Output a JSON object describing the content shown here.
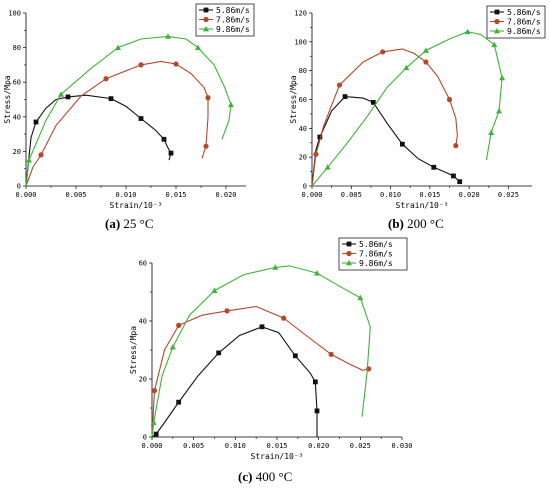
{
  "chart_data": [
    {
      "type": "line",
      "caption_letter": "(a)",
      "caption_text": " 25 °C",
      "xlabel": "Strain/10⁻³",
      "ylabel": "Stress/Mpa",
      "xlim": [
        0,
        0.022
      ],
      "ylim": [
        0,
        100
      ],
      "xticks": [
        0.0,
        0.005,
        0.01,
        0.015,
        0.02
      ],
      "xtick_labels": [
        "0.000",
        "0.005",
        "0.010",
        "0.015",
        "0.020"
      ],
      "yticks": [
        0,
        20,
        40,
        60,
        80,
        100
      ],
      "ytick_labels": [
        "0",
        "20",
        "40",
        "60",
        "80",
        "100"
      ],
      "legend_position": "top-right",
      "series": [
        {
          "name": "5.86m/s",
          "color": "#111111",
          "marker": "square",
          "x": [
            0,
            0.0005,
            0.001,
            0.002,
            0.003,
            0.0042,
            0.006,
            0.0085,
            0.01,
            0.0115,
            0.013,
            0.0138,
            0.0142,
            0.0145,
            0.0143
          ],
          "y": [
            0,
            28,
            37,
            45,
            50,
            51.5,
            52.5,
            50.5,
            46,
            39,
            32,
            27,
            22,
            19,
            15
          ],
          "marker_idx": [
            2,
            5,
            7,
            9,
            11,
            13
          ]
        },
        {
          "name": "7.86m/s",
          "color": "#b5472a",
          "marker": "circle",
          "x": [
            0,
            0.0007,
            0.0015,
            0.003,
            0.0055,
            0.008,
            0.0115,
            0.0135,
            0.015,
            0.0165,
            0.0178,
            0.0182,
            0.0182,
            0.018,
            0.0176
          ],
          "y": [
            0,
            11,
            18,
            35,
            52,
            62,
            70,
            72,
            70.5,
            65,
            57,
            51,
            40,
            23,
            16
          ],
          "marker_idx": [
            2,
            5,
            6,
            8,
            11,
            13
          ]
        },
        {
          "name": "9.86m/s",
          "color": "#3db33a",
          "marker": "triangle",
          "x": [
            0,
            0.0003,
            0.002,
            0.0035,
            0.0065,
            0.0092,
            0.0115,
            0.0142,
            0.016,
            0.0172,
            0.0188,
            0.0198,
            0.0205,
            0.0203,
            0.0196
          ],
          "y": [
            0,
            15,
            38,
            53,
            68,
            80,
            85,
            86.5,
            85,
            80,
            70,
            58,
            47,
            38,
            27
          ],
          "marker_idx": [
            1,
            3,
            5,
            7,
            9,
            12
          ]
        }
      ]
    },
    {
      "type": "line",
      "caption_letter": "(b)",
      "caption_text": " 200 °C",
      "xlabel": "Strain/10⁻³",
      "ylabel": "Stress/Mpa",
      "xlim": [
        0,
        0.028
      ],
      "ylim": [
        0,
        120
      ],
      "xticks": [
        0.0,
        0.005,
        0.01,
        0.015,
        0.02,
        0.025
      ],
      "xtick_labels": [
        "0.000",
        "0.005",
        "0.010",
        "0.015",
        "0.020",
        "0.025"
      ],
      "yticks": [
        0,
        20,
        40,
        60,
        80,
        100,
        120
      ],
      "ytick_labels": [
        "0",
        "20",
        "40",
        "60",
        "80",
        "100",
        "120"
      ],
      "legend_position": "top-right",
      "series": [
        {
          "name": "5.86m/s",
          "color": "#111111",
          "marker": "square",
          "x": [
            0,
            0.0005,
            0.001,
            0.0025,
            0.0042,
            0.0065,
            0.0078,
            0.0095,
            0.0115,
            0.0135,
            0.0155,
            0.0172,
            0.018,
            0.0188
          ],
          "y": [
            0,
            25,
            34,
            52,
            62,
            61,
            58,
            44,
            29,
            19,
            13,
            9,
            7,
            3
          ],
          "marker_idx": [
            2,
            4,
            6,
            8,
            10,
            12,
            13
          ]
        },
        {
          "name": "7.86m/s",
          "color": "#b5472a",
          "marker": "circle",
          "x": [
            0,
            0.0005,
            0.0015,
            0.0035,
            0.0065,
            0.009,
            0.0115,
            0.013,
            0.0145,
            0.016,
            0.0175,
            0.0183,
            0.0185,
            0.0183
          ],
          "y": [
            0,
            22,
            42,
            70,
            86,
            93,
            95,
            92,
            86,
            76,
            60,
            47,
            35,
            28
          ],
          "marker_idx": [
            1,
            3,
            5,
            8,
            10,
            13
          ]
        },
        {
          "name": "9.86m/s",
          "color": "#3db33a",
          "marker": "triangle",
          "x": [
            0,
            0.002,
            0.0045,
            0.007,
            0.0095,
            0.012,
            0.0145,
            0.0175,
            0.0198,
            0.0215,
            0.0232,
            0.0242,
            0.0238,
            0.0228,
            0.0222
          ],
          "y": [
            0,
            13,
            30,
            48,
            68,
            82,
            94,
            102,
            107,
            105,
            98,
            75,
            52,
            37,
            18
          ],
          "marker_idx": [
            1,
            5,
            6,
            8,
            10,
            11,
            12,
            13
          ]
        }
      ]
    },
    {
      "type": "line",
      "caption_letter": "(c)",
      "caption_text": " 400 °C",
      "xlabel": "Strain/10⁻³",
      "ylabel": "Stress/Mpa",
      "xlim": [
        0,
        0.03
      ],
      "ylim": [
        0,
        60
      ],
      "xticks": [
        0.0,
        0.005,
        0.01,
        0.015,
        0.02,
        0.025,
        0.03
      ],
      "xtick_labels": [
        "0.000",
        "0.005",
        "0.010",
        "0.015",
        "0.020",
        "0.025",
        "0.030"
      ],
      "yticks": [
        0,
        20,
        40,
        60
      ],
      "ytick_labels": [
        "0",
        "20",
        "40",
        "60"
      ],
      "legend_position": "top-right",
      "series": [
        {
          "name": "5.86m/s",
          "color": "#111111",
          "marker": "square",
          "x": [
            0,
            0.0005,
            0.0015,
            0.0032,
            0.0055,
            0.008,
            0.0105,
            0.0132,
            0.0152,
            0.0172,
            0.019,
            0.0196,
            0.0198,
            0.0198
          ],
          "y": [
            0,
            1,
            5,
            12,
            21,
            29,
            35,
            38,
            36,
            28,
            22,
            19,
            9,
            0
          ],
          "marker_idx": [
            1,
            3,
            5,
            7,
            9,
            11,
            12
          ]
        },
        {
          "name": "7.86m/s",
          "color": "#b5472a",
          "marker": "circle",
          "x": [
            0,
            0.0003,
            0.0015,
            0.0032,
            0.006,
            0.009,
            0.0125,
            0.0158,
            0.0185,
            0.0215,
            0.0238,
            0.0253,
            0.026,
            0.0262
          ],
          "y": [
            0,
            16,
            30,
            38.5,
            42,
            43.5,
            45,
            41,
            35,
            28.5,
            25,
            23,
            23.5,
            24
          ],
          "marker_idx": [
            1,
            3,
            5,
            7,
            9,
            12
          ]
        },
        {
          "name": "9.86m/s",
          "color": "#3db33a",
          "marker": "triangle",
          "x": [
            0,
            0.0002,
            0.0012,
            0.0025,
            0.0045,
            0.0075,
            0.011,
            0.0148,
            0.0165,
            0.0198,
            0.0225,
            0.025,
            0.0262,
            0.0258,
            0.0252
          ],
          "y": [
            0,
            5,
            21,
            31,
            42,
            50.5,
            56,
            58.5,
            59,
            56.5,
            52,
            48,
            38,
            22,
            7
          ],
          "marker_idx": [
            1,
            3,
            5,
            7,
            9,
            11
          ]
        }
      ]
    }
  ]
}
